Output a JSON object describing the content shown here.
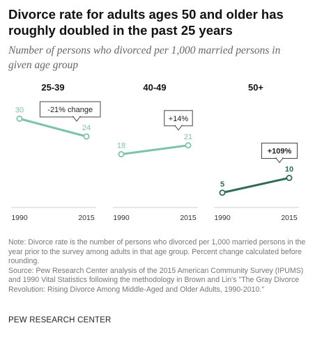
{
  "title": "Divorce rate for adults ages 50 and older has roughly doubled in the past 25 years",
  "subtitle": "Number of persons who divorced per 1,000 married persons in given age group",
  "chart_data": [
    {
      "type": "line",
      "panel_title": "25-39",
      "x": [
        "1990",
        "2015"
      ],
      "values": [
        30,
        24
      ],
      "value_labels": [
        "30",
        "24"
      ],
      "change_label": "-21% change",
      "change_bold": false,
      "color": "#7cc3a9",
      "ylim": [
        0,
        40
      ]
    },
    {
      "type": "line",
      "panel_title": "40-49",
      "x": [
        "1990",
        "2015"
      ],
      "values": [
        18,
        21
      ],
      "value_labels": [
        "18",
        "21"
      ],
      "change_label": "+14%",
      "change_bold": false,
      "color": "#7cc3a9",
      "ylim": [
        0,
        40
      ]
    },
    {
      "type": "line",
      "panel_title": "50+",
      "x": [
        "1990",
        "2015"
      ],
      "values": [
        5,
        10
      ],
      "value_labels": [
        "5",
        "10"
      ],
      "change_label": "+109%",
      "change_bold": true,
      "color": "#2d6e58",
      "ylim": [
        0,
        40
      ]
    }
  ],
  "notes": {
    "note": "Note: Divorce rate is the number of persons who divorced per 1,000 married persons in the year prior to the survey among adults in that age group. Percent change calculated before rounding.",
    "source": "Source: Pew Research Center analysis of the 2015 American Community Survey (IPUMS) and 1990 Vital Statistics following the methodology in Brown and Lin's \"The Gray Divorce Revolution: Rising Divorce Among Middle-Aged and Older Adults, 1990-2010.\""
  },
  "brand": "PEW RESEARCH CENTER"
}
